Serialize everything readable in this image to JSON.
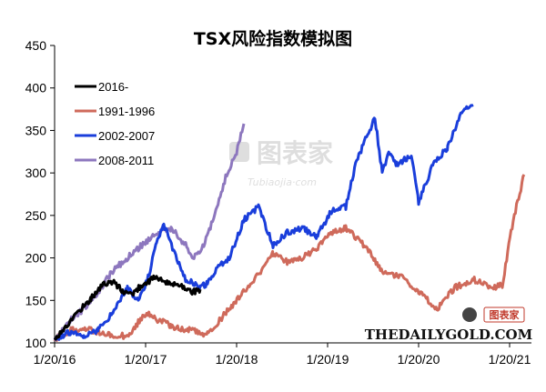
{
  "chart_data": {
    "type": "line",
    "title": "TSX风险指数模拟图",
    "xlabel": "",
    "ylabel": "",
    "ylim": [
      100,
      450
    ],
    "y_ticks": [
      100,
      150,
      200,
      250,
      300,
      350,
      400,
      450
    ],
    "x_ticks": [
      "1/20/16",
      "1/20/17",
      "1/20/18",
      "1/20/19",
      "1/20/20",
      "1/20/21"
    ],
    "x_tick_index": [
      0,
      250,
      500,
      750,
      1000,
      1250
    ],
    "grid": false,
    "legend_position": "top-left",
    "series": [
      {
        "name": "2016-",
        "color": "#000000",
        "x": [
          0,
          30,
          60,
          100,
          130,
          160,
          190,
          210,
          240,
          260,
          280,
          300,
          320,
          340,
          360,
          380,
          400
        ],
        "values": [
          105,
          118,
          135,
          152,
          168,
          172,
          160,
          157,
          168,
          173,
          178,
          172,
          168,
          170,
          165,
          160,
          163
        ]
      },
      {
        "name": "1991-1996",
        "color": "#cf6a5b",
        "x": [
          0,
          50,
          100,
          150,
          200,
          250,
          280,
          320,
          370,
          420,
          480,
          520,
          560,
          600,
          640,
          680,
          720,
          760,
          800,
          850,
          900,
          950,
          1000,
          1050,
          1100,
          1150,
          1200,
          1230,
          1260,
          1290
        ],
        "values": [
          105,
          116,
          115,
          110,
          108,
          135,
          128,
          120,
          115,
          110,
          140,
          160,
          180,
          205,
          195,
          200,
          210,
          230,
          235,
          215,
          185,
          178,
          160,
          140,
          165,
          175,
          165,
          168,
          245,
          298
        ]
      },
      {
        "name": "2002-2007",
        "color": "#1a3edb",
        "x": [
          0,
          40,
          80,
          120,
          160,
          200,
          230,
          260,
          280,
          300,
          330,
          360,
          400,
          420,
          450,
          480,
          520,
          560,
          600,
          640,
          680,
          720,
          760,
          800,
          830,
          860,
          880,
          900,
          920,
          940,
          980,
          1000,
          1040,
          1080,
          1120,
          1150
        ],
        "values": [
          105,
          112,
          108,
          115,
          135,
          165,
          150,
          180,
          220,
          240,
          205,
          175,
          165,
          170,
          190,
          200,
          245,
          260,
          215,
          230,
          235,
          225,
          255,
          260,
          315,
          345,
          365,
          300,
          325,
          310,
          320,
          265,
          310,
          330,
          372,
          380
        ]
      },
      {
        "name": "2008-2011",
        "color": "#8d77be",
        "x": [
          0,
          40,
          80,
          120,
          160,
          200,
          240,
          280,
          320,
          360,
          380,
          410,
          440,
          470,
          500,
          520
        ],
        "values": [
          105,
          125,
          140,
          160,
          185,
          200,
          215,
          230,
          235,
          215,
          200,
          215,
          250,
          295,
          325,
          358
        ]
      }
    ]
  },
  "watermark": {
    "center_text": "图表家",
    "center_sub": "Tubiaojia·com",
    "brand_text": "THEDAILYGOLD.COM",
    "small_logo_text": "图表家"
  }
}
